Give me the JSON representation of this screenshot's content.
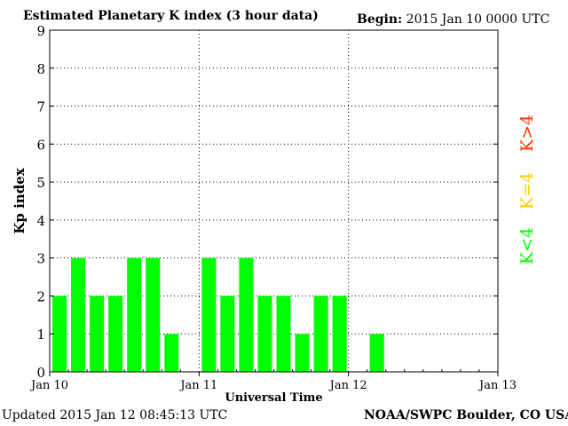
{
  "header": {
    "title": "Estimated Planetary K index (3 hour data)",
    "begin_label": "Begin:",
    "begin_value": "2015 Jan 10 0000 UTC"
  },
  "footer": {
    "updated": "Updated 2015 Jan 12 08:45:13 UTC",
    "credit": "NOAA/SWPC Boulder, CO USA"
  },
  "colors": {
    "low": "#00ff00",
    "storm_threshold": "#ffcc00",
    "storm": "#ff3300"
  },
  "chart_data": {
    "type": "bar",
    "title": "Estimated Planetary K index (3 hour data)",
    "xlabel": "Universal Time",
    "ylabel": "Kp index",
    "ylim": [
      0,
      9
    ],
    "yticks": [
      "0",
      "1",
      "2",
      "3",
      "4",
      "5",
      "6",
      "7",
      "8",
      "9"
    ],
    "xlim": [
      "2015-01-10 00:00",
      "2015-01-13 00:00"
    ],
    "xticks": [
      "Jan 10",
      "Jan 11",
      "Jan 12",
      "Jan 13"
    ],
    "grid": true,
    "legend_position": "right",
    "legend": [
      {
        "label": "K<4",
        "color": "#00ff00"
      },
      {
        "label": "K=4",
        "color": "#ffcc00"
      },
      {
        "label": "K>4",
        "color": "#ff3300"
      }
    ],
    "series": [
      {
        "x": [
          "2015-01-10 00:00",
          "2015-01-10 03:00",
          "2015-01-10 06:00",
          "2015-01-10 09:00",
          "2015-01-10 12:00",
          "2015-01-10 15:00",
          "2015-01-10 18:00",
          "2015-01-10 21:00",
          "2015-01-11 00:00",
          "2015-01-11 03:00",
          "2015-01-11 06:00",
          "2015-01-11 09:00",
          "2015-01-11 12:00",
          "2015-01-11 15:00",
          "2015-01-11 18:00",
          "2015-01-11 21:00",
          "2015-01-12 00:00",
          "2015-01-12 03:00",
          "2015-01-12 06:00"
        ],
        "values": [
          2,
          3,
          2,
          2,
          3,
          3,
          1,
          0,
          3,
          2,
          3,
          2,
          2,
          1,
          2,
          2,
          0,
          1,
          null
        ]
      }
    ]
  }
}
